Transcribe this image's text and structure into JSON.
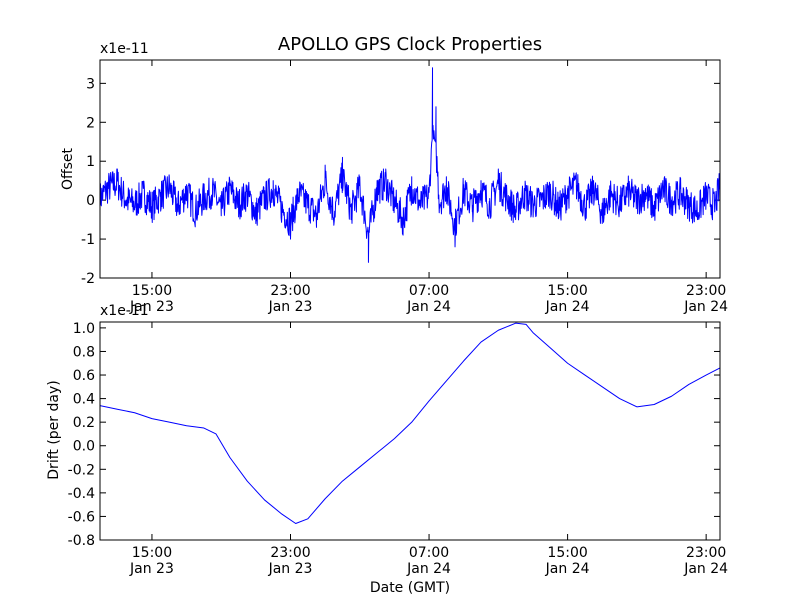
{
  "title": "APOLLO GPS Clock Properties",
  "xlabel": "Date (GMT)",
  "colors": {
    "series": "#0000ff",
    "axes": "#000000",
    "background": "#ffffff"
  },
  "x_ticks": [
    {
      "hours": 15,
      "time": "15:00",
      "date": "Jan 23"
    },
    {
      "hours": 23,
      "time": "23:00",
      "date": "Jan 23"
    },
    {
      "hours": 31,
      "time": "07:00",
      "date": "Jan 24"
    },
    {
      "hours": 39,
      "time": "15:00",
      "date": "Jan 24"
    },
    {
      "hours": 47,
      "time": "23:00",
      "date": "Jan 24"
    }
  ],
  "chart_data": [
    {
      "type": "line",
      "name": "offset",
      "ylabel": "Offset",
      "scale_label": "x1e-11",
      "xlim_hours": [
        12.0,
        47.8
      ],
      "ylim": [
        -2,
        3.6
      ],
      "y_ticks": [
        {
          "value": -2,
          "label": "-2"
        },
        {
          "value": -1,
          "label": "-1"
        },
        {
          "value": 0,
          "label": "0"
        },
        {
          "value": 1,
          "label": "1"
        },
        {
          "value": 2,
          "label": "2"
        },
        {
          "value": 3,
          "label": "3"
        }
      ],
      "x_hours": [
        12.0,
        12.5,
        13.0,
        13.5,
        14.0,
        14.5,
        15.0,
        15.5,
        16.0,
        16.5,
        17.0,
        17.5,
        18.0,
        18.5,
        19.0,
        19.5,
        20.0,
        20.5,
        21.0,
        21.5,
        22.0,
        22.5,
        23.0,
        23.5,
        24.0,
        24.5,
        25.0,
        25.5,
        26.0,
        26.5,
        27.0,
        27.5,
        28.0,
        28.5,
        29.0,
        29.5,
        30.0,
        30.5,
        31.0,
        31.2,
        31.4,
        31.6,
        32.0,
        32.5,
        33.0,
        33.5,
        34.0,
        34.5,
        35.0,
        35.5,
        36.0,
        36.5,
        37.0,
        37.5,
        38.0,
        38.5,
        39.0,
        39.5,
        40.0,
        40.5,
        41.0,
        41.5,
        42.0,
        42.5,
        43.0,
        43.5,
        44.0,
        44.5,
        45.0,
        45.5,
        46.0,
        46.5,
        47.0,
        47.5,
        47.8
      ],
      "values": [
        0.1,
        0.6,
        0.8,
        0.0,
        -0.2,
        0.3,
        -0.3,
        0.2,
        0.6,
        -0.3,
        0.4,
        -0.5,
        0.1,
        0.4,
        -0.4,
        0.5,
        -0.2,
        0.3,
        -0.6,
        0.1,
        0.5,
        -0.4,
        -1.0,
        0.3,
        -0.2,
        -0.7,
        0.9,
        -0.6,
        1.1,
        -0.5,
        0.6,
        -1.6,
        0.5,
        0.8,
        -0.1,
        -0.9,
        0.6,
        -0.2,
        0.2,
        3.4,
        2.4,
        -0.1,
        0.6,
        -1.2,
        0.4,
        -0.3,
        0.5,
        -0.2,
        0.8,
        0.1,
        -0.5,
        0.3,
        -0.2,
        0.0,
        0.4,
        -0.4,
        0.3,
        0.7,
        -0.3,
        0.5,
        -0.6,
        0.3,
        -0.2,
        0.4,
        0.0,
        0.3,
        -0.4,
        0.5,
        0.0,
        0.3,
        -0.2,
        -0.5,
        0.2,
        -0.3,
        0.7
      ]
    },
    {
      "type": "line",
      "name": "drift",
      "ylabel": "Drift (per day)",
      "scale_label": "x1e-11",
      "xlim_hours": [
        12.0,
        47.8
      ],
      "ylim": [
        -0.8,
        1.05
      ],
      "y_ticks": [
        {
          "value": -0.8,
          "label": "-0.8"
        },
        {
          "value": -0.6,
          "label": "-0.6"
        },
        {
          "value": -0.4,
          "label": "-0.4"
        },
        {
          "value": -0.2,
          "label": "-0.2"
        },
        {
          "value": 0.0,
          "label": "0.0"
        },
        {
          "value": 0.2,
          "label": "0.2"
        },
        {
          "value": 0.4,
          "label": "0.4"
        },
        {
          "value": 0.6,
          "label": "0.6"
        },
        {
          "value": 0.8,
          "label": "0.8"
        },
        {
          "value": 1.0,
          "label": "1.0"
        }
      ],
      "x_hours": [
        12.0,
        13.0,
        14.0,
        15.0,
        16.0,
        17.0,
        18.0,
        18.7,
        19.5,
        20.5,
        21.5,
        22.5,
        23.3,
        24.0,
        25.0,
        26.0,
        27.0,
        28.0,
        29.0,
        30.0,
        31.0,
        32.0,
        33.0,
        34.0,
        35.0,
        36.0,
        36.6,
        37.0,
        38.0,
        39.0,
        40.0,
        41.0,
        42.0,
        43.0,
        44.0,
        45.0,
        46.0,
        47.0,
        47.8
      ],
      "values": [
        0.34,
        0.31,
        0.28,
        0.23,
        0.2,
        0.17,
        0.15,
        0.1,
        -0.1,
        -0.3,
        -0.46,
        -0.58,
        -0.66,
        -0.62,
        -0.45,
        -0.3,
        -0.18,
        -0.06,
        0.06,
        0.2,
        0.38,
        0.55,
        0.72,
        0.88,
        0.98,
        1.04,
        1.03,
        0.96,
        0.83,
        0.7,
        0.6,
        0.5,
        0.4,
        0.33,
        0.35,
        0.42,
        0.52,
        0.6,
        0.66
      ]
    }
  ]
}
